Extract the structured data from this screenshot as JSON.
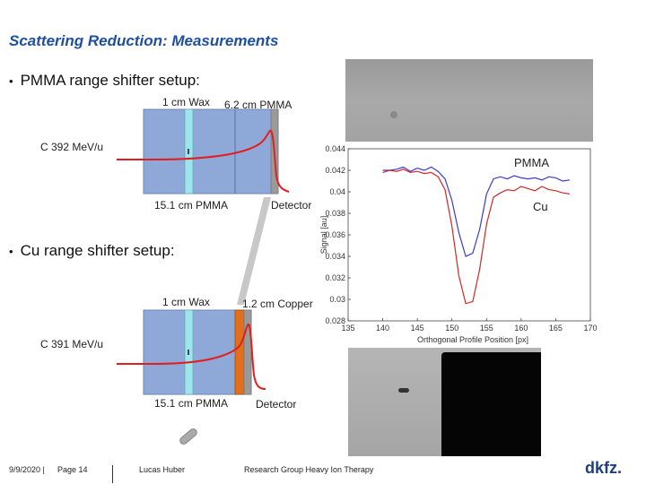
{
  "slide": {
    "title": "Scattering Reduction: Measurements",
    "bullet1": "PMMA range shifter setup:",
    "bullet2": "Cu range shifter setup:",
    "bullet_symbol": "•"
  },
  "setup_pmma": {
    "label_wax": "1 cm Wax",
    "label_shifter": "6.2 cm PMMA",
    "label_body": "15.1 cm PMMA",
    "label_detector": "Detector",
    "energy": "C 392 MeV/u"
  },
  "setup_cu": {
    "label_wax": "1 cm Wax",
    "label_shifter": "1.2 cm Copper",
    "label_body": "15.1 cm PMMA",
    "label_detector": "Detector",
    "energy": "C 391 MeV/u"
  },
  "chart_data": {
    "type": "line",
    "xlabel": "Orthogonal Profile Position [px]",
    "ylabel": "Signal [au]",
    "xlim": [
      135,
      170
    ],
    "ylim": [
      0.028,
      0.044
    ],
    "xticks": [
      "135",
      "140",
      "145",
      "150",
      "155",
      "160",
      "165",
      "170"
    ],
    "yticks": [
      "0.028",
      "0.03",
      "0.032",
      "0.034",
      "0.036",
      "0.038",
      "0.04",
      "0.042",
      "0.044"
    ],
    "series": [
      {
        "name": "PMMA",
        "color": "#3a3acf",
        "x": [
          140,
          141,
          142,
          143,
          144,
          145,
          146,
          147,
          148,
          149,
          150,
          151,
          152,
          153,
          154,
          155,
          156,
          157,
          158,
          159,
          160,
          161,
          162,
          163,
          164,
          165,
          166,
          167
        ],
        "y": [
          0.042,
          0.042,
          0.0421,
          0.0423,
          0.0419,
          0.0422,
          0.042,
          0.0423,
          0.0419,
          0.0412,
          0.0392,
          0.0362,
          0.034,
          0.0343,
          0.0365,
          0.0398,
          0.0412,
          0.0414,
          0.0412,
          0.0415,
          0.0413,
          0.0412,
          0.0413,
          0.0411,
          0.0414,
          0.0413,
          0.041,
          0.0411
        ]
      },
      {
        "name": "Cu",
        "color": "#d02828",
        "x": [
          140,
          141,
          142,
          143,
          144,
          145,
          146,
          147,
          148,
          149,
          150,
          151,
          152,
          153,
          154,
          155,
          156,
          157,
          158,
          159,
          160,
          161,
          162,
          163,
          164,
          165,
          166,
          167
        ],
        "y": [
          0.0418,
          0.042,
          0.0419,
          0.0421,
          0.0418,
          0.0419,
          0.0417,
          0.0418,
          0.0414,
          0.0402,
          0.0368,
          0.0322,
          0.0296,
          0.0298,
          0.0328,
          0.037,
          0.0395,
          0.0399,
          0.0402,
          0.0401,
          0.0405,
          0.0403,
          0.0401,
          0.0405,
          0.0402,
          0.0401,
          0.0399,
          0.0398
        ]
      }
    ],
    "annotations": [
      "PMMA",
      "Cu"
    ],
    "grid": false
  },
  "footer": {
    "date": "9/9/2020 |",
    "page": "Page 14",
    "author": "Lucas Huber",
    "group": "Research Group Heavy Ion Therapy",
    "logo": "dkfz."
  },
  "colors": {
    "title": "#1f4fa0",
    "phantom": "#8ea9d8",
    "wax": "#9de4ef",
    "copper": "#e0701e",
    "bragg": "#e02020"
  }
}
